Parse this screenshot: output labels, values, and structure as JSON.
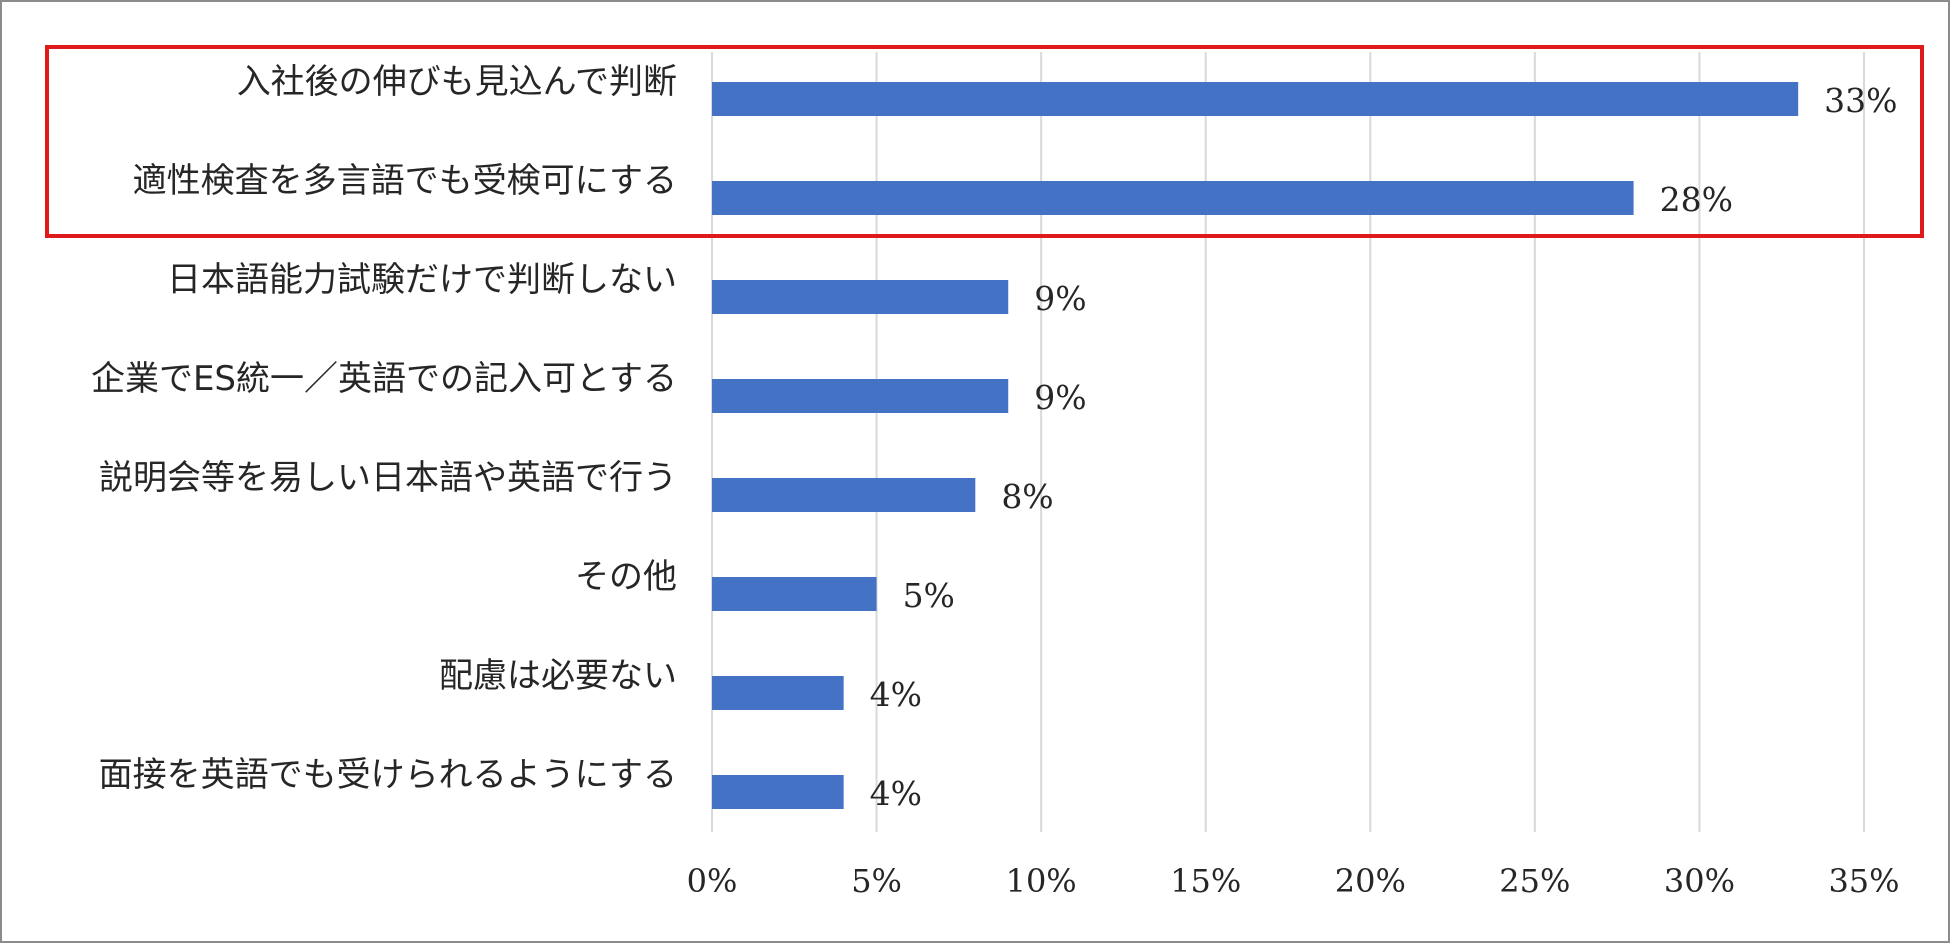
{
  "chart_data": {
    "type": "bar",
    "orientation": "horizontal",
    "categories": [
      "入社後の伸びも見込んで判断",
      "適性検査を多言語でも受検可にする",
      "日本語能力試験だけで判断しない",
      "企業でES統一／英語での記入可とする",
      "説明会等を易しい日本語や英語で行う",
      "その他",
      "配慮は必要ない",
      "面接を英語でも受けられるようにする"
    ],
    "values": [
      33,
      28,
      9,
      9,
      8,
      5,
      4,
      4
    ],
    "value_labels": [
      "33%",
      "28%",
      "9%",
      "9%",
      "8%",
      "5%",
      "4%",
      "4%"
    ],
    "xlim": [
      0,
      35
    ],
    "xticks": [
      0,
      5,
      10,
      15,
      20,
      25,
      30,
      35
    ],
    "xtick_labels": [
      "0%",
      "5%",
      "10%",
      "15%",
      "20%",
      "25%",
      "30%",
      "35%"
    ],
    "grid": "vertical",
    "legend": "none",
    "highlight": {
      "categories": [
        "入社後の伸びも見込んで判断",
        "適性検査を多言語でも受検可にする"
      ],
      "color": "#e01a1a"
    },
    "colors": {
      "bar": "#4472c4",
      "grid": "#d9d9d9",
      "border": "#8c8c8c",
      "text": "#262626"
    }
  }
}
